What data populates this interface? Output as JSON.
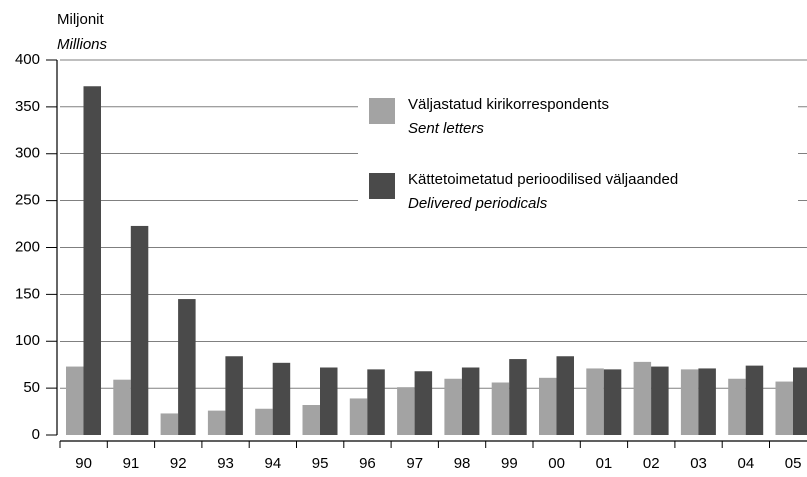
{
  "chart_data": {
    "type": "bar",
    "y_label": "Miljonit",
    "y_label_en": "Millions",
    "categories": [
      "90",
      "91",
      "92",
      "93",
      "94",
      "95",
      "96",
      "97",
      "98",
      "99",
      "00",
      "01",
      "02",
      "03",
      "04",
      "05"
    ],
    "series": [
      {
        "name": "Väljastatud kirikorrespondents",
        "name_en": "Sent letters",
        "color": "#a3a3a3",
        "values": [
          73,
          59,
          23,
          26,
          28,
          32,
          39,
          51,
          60,
          56,
          61,
          71,
          78,
          70,
          60,
          57
        ]
      },
      {
        "name": "Kättetoimetatud perioodilised väljaanded",
        "name_en": "Delivered periodicals",
        "color": "#4a4a4a",
        "values": [
          372,
          223,
          145,
          84,
          77,
          72,
          70,
          68,
          72,
          81,
          84,
          70,
          73,
          71,
          74,
          72
        ]
      }
    ],
    "ylim": [
      0,
      400
    ],
    "yticks": [
      0,
      50,
      100,
      150,
      200,
      250,
      300,
      350,
      400
    ],
    "grid": true
  }
}
